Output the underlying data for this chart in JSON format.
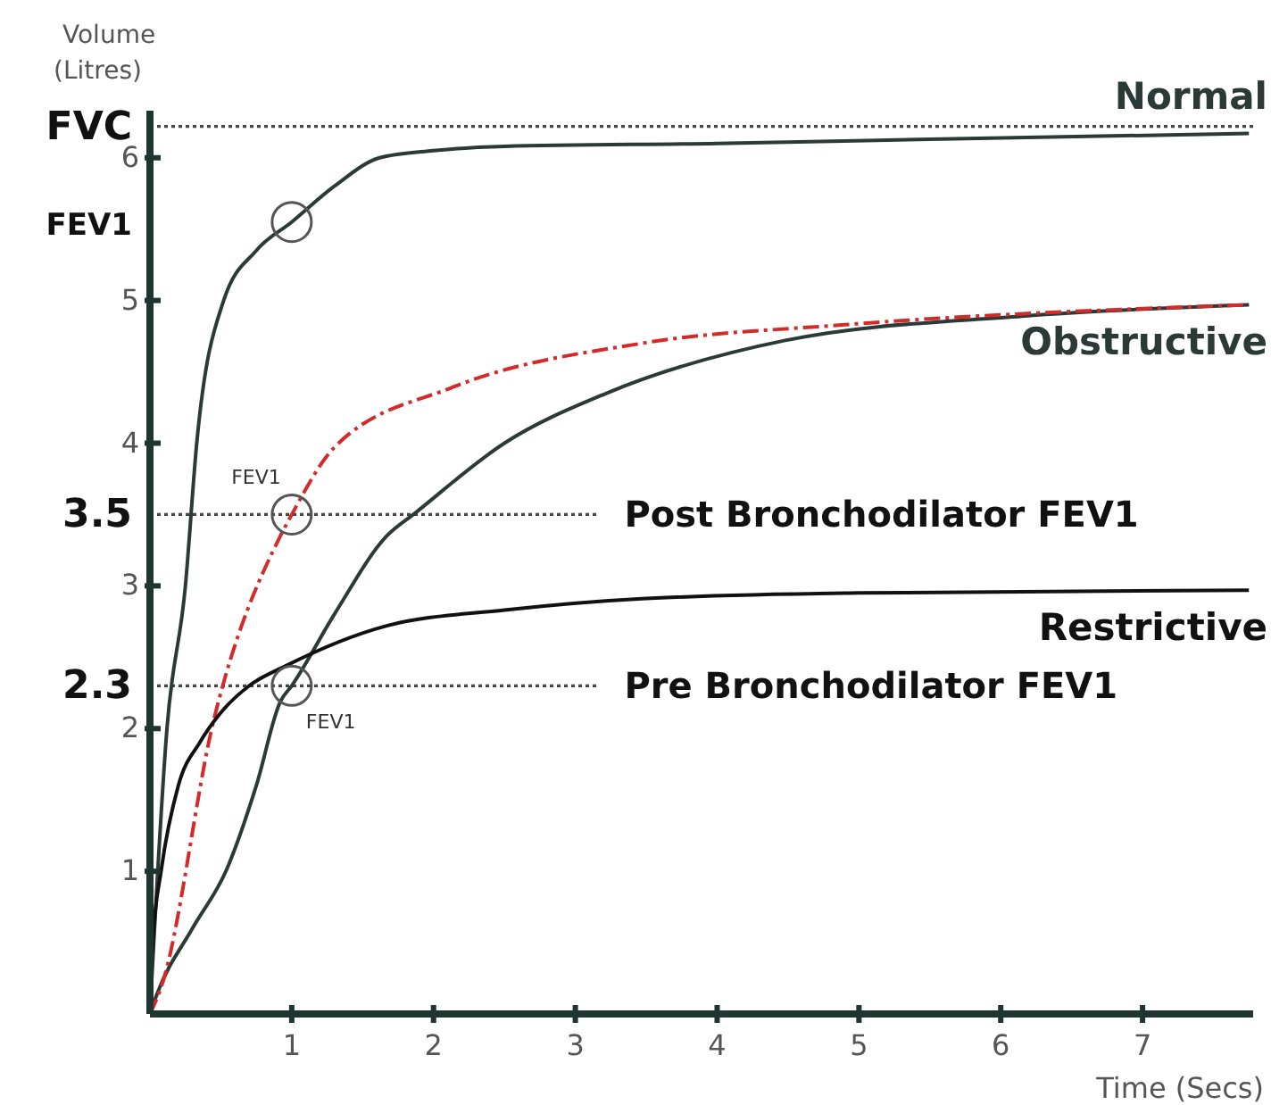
{
  "chart_data": {
    "type": "line",
    "xlabel": "Time (Secs)",
    "ylabel": "Volume (Litres)",
    "xlim": [
      0,
      7.78
    ],
    "ylim": [
      0,
      6.33
    ],
    "xticks": [
      1,
      2,
      3,
      4,
      5,
      6,
      7
    ],
    "yticks": [
      1,
      {
        "value": 2.3,
        "label": "2.3"
      },
      2,
      3,
      {
        "value": 3.5,
        "label": "3.5"
      },
      4,
      5,
      {
        "value": 5.55,
        "label": "FEV1"
      },
      6,
      {
        "value": 6.22,
        "label": "FVC"
      }
    ],
    "line_style": "solid",
    "marker": "none",
    "series": [
      {
        "name": "Normal",
        "color": "#2b3a36",
        "x": [
          0,
          0.12,
          0.25,
          0.33,
          0.52,
          0.75,
          1,
          1.3,
          1.62,
          2,
          2.5,
          4,
          5.5,
          7.75
        ],
        "values": [
          0,
          2,
          3,
          4,
          5,
          5.35,
          5.55,
          5.8,
          6.0,
          6.05,
          6.08,
          6.1,
          6.13,
          6.17
        ]
      },
      {
        "name": "Obstructive",
        "color": "#2b3a36",
        "x": [
          0,
          0.05,
          0.3,
          0.54,
          0.75,
          0.92,
          1,
          1.3,
          1.67,
          1.87,
          2.5,
          3.22,
          4.48,
          6.15,
          7.75
        ],
        "values": [
          0,
          0.14,
          0.6,
          1.01,
          1.6,
          2.19,
          2.3,
          2.8,
          3.35,
          3.51,
          4.0,
          4.35,
          4.72,
          4.89,
          4.97
        ]
      },
      {
        "color": "#d42a2a",
        "line_style": "dashed",
        "x": [
          0,
          0.08,
          0.45,
          0.92,
          1,
          1.3,
          2.13,
          3.47,
          4.9,
          7.75
        ],
        "values": [
          0,
          0.19,
          2.06,
          3.35,
          3.5,
          3.97,
          4.39,
          4.7,
          4.83,
          4.97
        ]
      },
      {
        "name": "Restrictive",
        "color": "#111111",
        "x": [
          0,
          0.02,
          0.08,
          0.2,
          0.35,
          0.49,
          0.7,
          0.96,
          1.67,
          2.5,
          3.47,
          5,
          7.75
        ],
        "values": [
          0,
          0.5,
          1.01,
          1.6,
          1.9,
          2.1,
          2.3,
          2.44,
          2.72,
          2.83,
          2.91,
          2.95,
          2.97
        ]
      },
      {
        "type": "scatter",
        "marker": "circle",
        "color": "#555555",
        "x": [
          1,
          1,
          1
        ],
        "values": [
          5.55,
          3.5,
          2.3
        ]
      }
    ],
    "ref_lines": [
      {
        "axis": "y",
        "value": 6.22
      },
      {
        "axis": "y",
        "value": 3.5,
        "label": "Post Bronchodilator FEV1"
      },
      {
        "axis": "y",
        "value": 2.3,
        "label": "Pre Bronchodilator FEV1"
      }
    ],
    "annotations": [
      {
        "text": "FEV1",
        "x": 1,
        "y": 3.5
      },
      {
        "text": "FEV1",
        "x": 1,
        "y": 2.3
      }
    ]
  }
}
